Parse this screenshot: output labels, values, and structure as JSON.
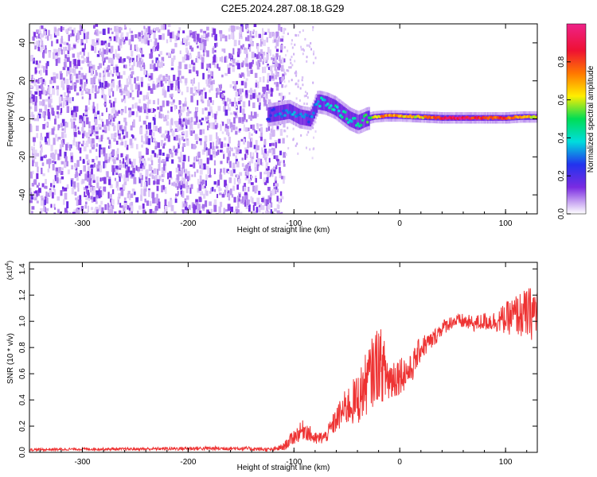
{
  "title": "C2E5.2024.287.08.18.G29",
  "chart_data": [
    {
      "type": "heatmap",
      "title": "C2E5.2024.287.08.18.G29",
      "xlabel": "Height of straight line (km)",
      "ylabel": "Frequency (Hz)",
      "xlim": [
        -350,
        130
      ],
      "ylim": [
        -50,
        50
      ],
      "xticks": [
        -300,
        -200,
        -100,
        0,
        100
      ],
      "xtick_labels": [
        "-300",
        "-200",
        "-100",
        "0",
        "100"
      ],
      "yticks": [
        -40,
        -20,
        0,
        20,
        40
      ],
      "ytick_labels": [
        "-40",
        "-20",
        "0",
        "20",
        "40"
      ],
      "colorbar": {
        "label": "Normalized spectral amplitude",
        "range": [
          0.0,
          1.0
        ],
        "ticks": [
          0.0,
          0.2,
          0.4,
          0.6,
          0.8
        ],
        "tick_labels": [
          "0.0",
          "0.2",
          "0.4",
          "0.6",
          "0.8"
        ],
        "colors": [
          "#ffffff",
          "#c9a8f2",
          "#7a2be2",
          "#2233ee",
          "#00dddd",
          "#00dd55",
          "#ffee00",
          "#ff7700",
          "#ee1133",
          "#ee2288"
        ]
      },
      "noise_region": {
        "x_range": [
          -350,
          -110
        ],
        "freq_range": [
          -50,
          50
        ],
        "amplitude_range": [
          0.05,
          0.25
        ]
      },
      "signal_trace": [
        {
          "x": -125,
          "freq": 2,
          "amplitude": 0.35
        },
        {
          "x": -115,
          "freq": 3,
          "amplitude": 0.4
        },
        {
          "x": -105,
          "freq": 4,
          "amplitude": 0.42
        },
        {
          "x": -95,
          "freq": 1,
          "amplitude": 0.4
        },
        {
          "x": -85,
          "freq": 0,
          "amplitude": 0.38
        },
        {
          "x": -78,
          "freq": 9,
          "amplitude": 0.45
        },
        {
          "x": -70,
          "freq": 8,
          "amplitude": 0.48
        },
        {
          "x": -62,
          "freq": 6,
          "amplitude": 0.5
        },
        {
          "x": -55,
          "freq": 3,
          "amplitude": 0.5
        },
        {
          "x": -48,
          "freq": 0,
          "amplitude": 0.5
        },
        {
          "x": -40,
          "freq": -2,
          "amplitude": 0.48
        },
        {
          "x": -32,
          "freq": 0,
          "amplitude": 0.55
        },
        {
          "x": -25,
          "freq": 1,
          "amplitude": 0.7
        },
        {
          "x": -15,
          "freq": 1.5,
          "amplitude": 0.8
        },
        {
          "x": 0,
          "freq": 1.5,
          "amplitude": 0.75
        },
        {
          "x": 20,
          "freq": 1,
          "amplitude": 0.7
        },
        {
          "x": 40,
          "freq": 0.5,
          "amplitude": 0.95
        },
        {
          "x": 60,
          "freq": 0.5,
          "amplitude": 0.95
        },
        {
          "x": 80,
          "freq": 0.5,
          "amplitude": 0.9
        },
        {
          "x": 100,
          "freq": 0.5,
          "amplitude": 0.85
        },
        {
          "x": 115,
          "freq": 1,
          "amplitude": 0.8
        },
        {
          "x": 130,
          "freq": 1,
          "amplitude": 0.7
        }
      ]
    },
    {
      "type": "line",
      "xlabel": "Height of straight line (km)",
      "ylabel": "SNR (10 * v/v)",
      "y_multiplier": "(x10",
      "y_multiplier_exponent": "4",
      "y_multiplier_close": ")",
      "xlim": [
        -350,
        130
      ],
      "ylim": [
        0,
        1.45
      ],
      "xticks": [
        -300,
        -200,
        -100,
        0,
        100
      ],
      "xtick_labels": [
        "-300",
        "-200",
        "-100",
        "0",
        "100"
      ],
      "yticks": [
        0,
        0.2,
        0.4,
        0.6,
        0.8,
        1.0,
        1.2,
        1.4
      ],
      "ytick_labels": [
        "0.0",
        "0.2",
        "0.4",
        "0.6",
        "0.8",
        "1.0",
        "1.2",
        "1.4"
      ],
      "color": "#ee3333",
      "series": [
        {
          "name": "SNR",
          "x": [
            -350,
            -300,
            -250,
            -200,
            -150,
            -120,
            -110,
            -100,
            -90,
            -80,
            -70,
            -60,
            -50,
            -40,
            -30,
            -20,
            -10,
            0,
            10,
            20,
            30,
            40,
            50,
            60,
            70,
            80,
            90,
            100,
            110,
            120,
            130
          ],
          "y": [
            0.02,
            0.025,
            0.025,
            0.03,
            0.03,
            0.02,
            0.04,
            0.12,
            0.18,
            0.1,
            0.12,
            0.25,
            0.35,
            0.4,
            0.55,
            0.7,
            0.55,
            0.6,
            0.62,
            0.8,
            0.85,
            0.95,
            1.0,
            1.0,
            0.98,
            1.0,
            1.0,
            1.02,
            1.05,
            1.05,
            1.08
          ],
          "noise_amplitude": [
            0.01,
            0.01,
            0.01,
            0.015,
            0.015,
            0.015,
            0.03,
            0.06,
            0.08,
            0.05,
            0.05,
            0.1,
            0.15,
            0.2,
            0.25,
            0.3,
            0.2,
            0.15,
            0.12,
            0.1,
            0.07,
            0.06,
            0.05,
            0.06,
            0.06,
            0.07,
            0.08,
            0.12,
            0.16,
            0.2,
            0.22
          ]
        }
      ]
    }
  ]
}
